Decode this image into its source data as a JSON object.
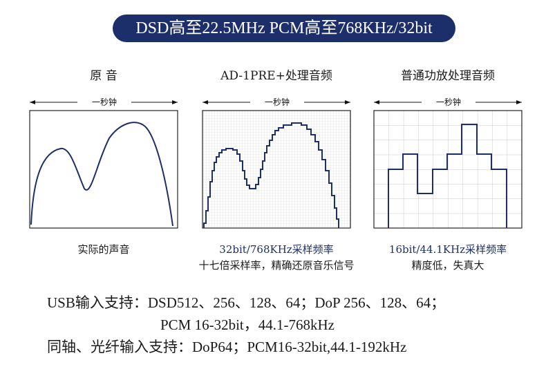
{
  "banner": {
    "text": "DSD高至22.5MHz  PCM高至768KHz/32bit"
  },
  "columns": [
    {
      "title": "原 音",
      "span_label": "一秒钟",
      "caption_lines": [
        "实际的声音"
      ],
      "caption_blue": ""
    },
    {
      "title": "AD-1PRE+处理音频",
      "span_label": "一秒钟",
      "caption_blue": "32bit/768KHz采样频率",
      "caption_lines": [
        "十七倍采样率，精确还原音乐信号"
      ]
    },
    {
      "title": "普通功放处理音频",
      "span_label": "一秒钟",
      "caption_blue": "16bit/44.1KHz采样频率",
      "caption_lines": [
        "精度低，失真大"
      ]
    }
  ],
  "support": {
    "usb_line1": "USB输入支持：DSD512、256、128、64；DoP 256、128、64；",
    "usb_line2": "PCM 16-32bit，44.1-768kHz",
    "coax_line": "同轴、光纤输入支持：DoP64；PCM16-32bit,44.1-192kHz"
  },
  "colors": {
    "navy": "#1c2f6b",
    "grid": "#c8c8c8"
  }
}
